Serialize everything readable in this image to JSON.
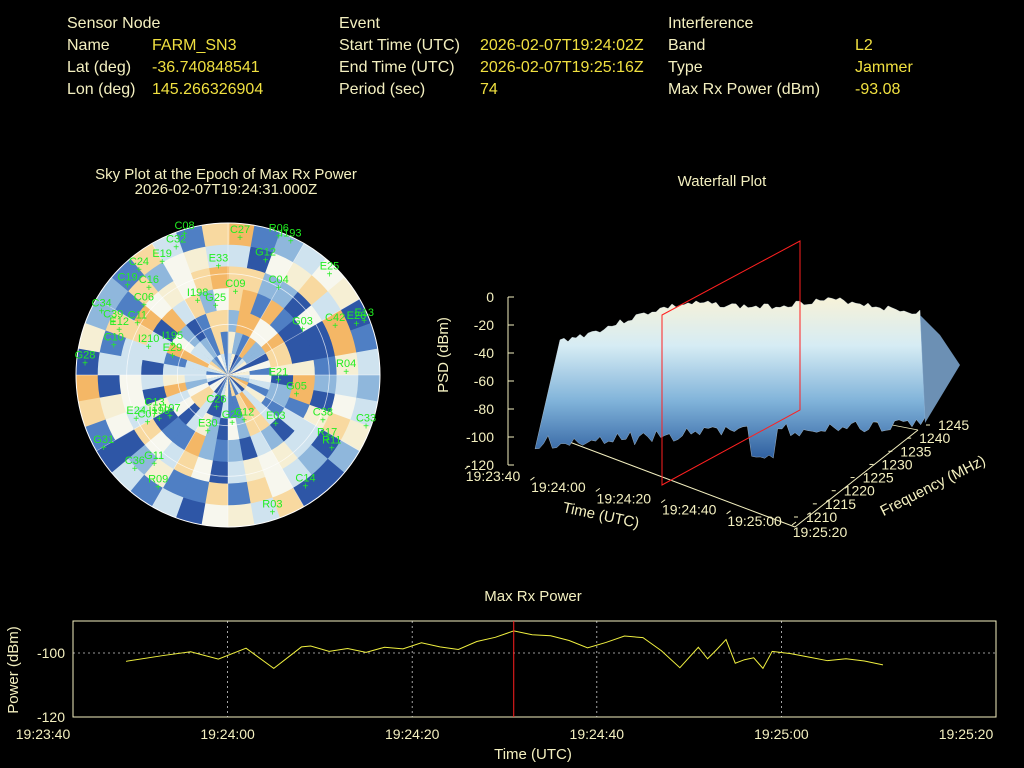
{
  "header": {
    "sensor": {
      "heading": "Sensor Node",
      "rows": [
        {
          "label": "Name",
          "value": "FARM_SN3"
        },
        {
          "label": "Lat (deg)",
          "value": "-36.740848541"
        },
        {
          "label": "Lon (deg)",
          "value": "145.266326904"
        }
      ]
    },
    "event": {
      "heading": "Event",
      "rows": [
        {
          "label": "Start Time (UTC)",
          "value": "2026-02-07T19:24:02Z"
        },
        {
          "label": "End Time (UTC)",
          "value": "2026-02-07T19:25:16Z"
        },
        {
          "label": "Period (sec)",
          "value": "74"
        }
      ]
    },
    "interference": {
      "heading": "Interference",
      "rows": [
        {
          "label": "Band",
          "value": "L2"
        },
        {
          "label": "Type",
          "value": "Jammer"
        },
        {
          "label": "Max Rx Power (dBm)",
          "value": "-93.08"
        }
      ]
    }
  },
  "colors": {
    "label": "#f4f0c0",
    "value": "#f0e040",
    "satellite": "#22ee22",
    "marker": "#ff2020",
    "trace": "#f0f040"
  },
  "chart_data": [
    {
      "type": "scatter",
      "chart": "sky-plot",
      "title": "Sky Plot at the Epoch of Max Rx Power",
      "subtitle": "2026-02-07T19:24:31.000Z",
      "satellites": [
        {
          "id": "C08",
          "az": 343,
          "el": 2
        },
        {
          "id": "R06",
          "az": 20,
          "el": 2
        },
        {
          "id": "I193",
          "az": 25,
          "el": 2
        },
        {
          "id": "C27",
          "az": 5,
          "el": 8
        },
        {
          "id": "G12",
          "az": 18,
          "el": 18
        },
        {
          "id": "C32",
          "az": 338,
          "el": 8
        },
        {
          "id": "E19",
          "az": 330,
          "el": 12
        },
        {
          "id": "C24",
          "az": 320,
          "el": 8
        },
        {
          "id": "C19",
          "az": 312,
          "el": 10
        },
        {
          "id": "E33",
          "az": 355,
          "el": 25
        },
        {
          "id": "C16",
          "az": 318,
          "el": 20
        },
        {
          "id": "C06",
          "az": 310,
          "el": 25
        },
        {
          "id": "C09",
          "az": 5,
          "el": 40
        },
        {
          "id": "C04",
          "az": 30,
          "el": 30
        },
        {
          "id": "E25",
          "az": 45,
          "el": 5
        },
        {
          "id": "I198",
          "az": 338,
          "el": 42
        },
        {
          "id": "G25",
          "az": 350,
          "el": 48
        },
        {
          "id": "C42",
          "az": 65,
          "el": 20
        },
        {
          "id": "G03",
          "az": 58,
          "el": 38
        },
        {
          "id": "E13",
          "az": 68,
          "el": 3
        },
        {
          "id": "E26",
          "az": 68,
          "el": 8
        },
        {
          "id": "C34",
          "az": 297,
          "el": 6
        },
        {
          "id": "C39",
          "az": 295,
          "el": 15
        },
        {
          "id": "E12",
          "az": 293,
          "el": 20
        },
        {
          "id": "C11",
          "az": 300,
          "el": 28
        },
        {
          "id": "C10",
          "az": 285,
          "el": 20
        },
        {
          "id": "I210",
          "az": 290,
          "el": 40
        },
        {
          "id": "I195",
          "az": 300,
          "el": 52
        },
        {
          "id": "G28",
          "az": 275,
          "el": 5
        },
        {
          "id": "E29",
          "az": 290,
          "el": 55
        },
        {
          "id": "C26",
          "az": 200,
          "el": 70
        },
        {
          "id": "E21",
          "az": 95,
          "el": 60
        },
        {
          "id": "G05",
          "az": 105,
          "el": 48
        },
        {
          "id": "R04",
          "az": 88,
          "el": 20
        },
        {
          "id": "E24",
          "az": 245,
          "el": 30
        },
        {
          "id": "C07",
          "az": 240,
          "el": 35
        },
        {
          "id": "I199",
          "az": 238,
          "el": 42
        },
        {
          "id": "C13",
          "az": 245,
          "el": 42
        },
        {
          "id": "I197",
          "az": 235,
          "el": 48
        },
        {
          "id": "G29",
          "az": 175,
          "el": 62
        },
        {
          "id": "C12",
          "az": 160,
          "el": 62
        },
        {
          "id": "E30",
          "az": 200,
          "el": 55
        },
        {
          "id": "E03",
          "az": 135,
          "el": 50
        },
        {
          "id": "C38",
          "az": 115,
          "el": 28
        },
        {
          "id": "C33",
          "az": 110,
          "el": 3
        },
        {
          "id": "R17",
          "az": 123,
          "el": 20
        },
        {
          "id": "R11",
          "az": 125,
          "el": 15
        },
        {
          "id": "G31",
          "az": 240,
          "el": 5
        },
        {
          "id": "C36",
          "az": 225,
          "el": 12
        },
        {
          "id": "G11",
          "az": 220,
          "el": 22
        },
        {
          "id": "R09",
          "az": 212,
          "el": 12
        },
        {
          "id": "C14",
          "az": 145,
          "el": 10
        },
        {
          "id": "R03",
          "az": 162,
          "el": 5
        }
      ]
    },
    {
      "type": "area",
      "chart": "waterfall-3d",
      "title": "Waterfall Plot",
      "zlabel": "PSD (dBm)",
      "xlabel": "Time (UTC)",
      "ylabel": "Frequency (MHz)",
      "zticks": [
        "0",
        "-20",
        "-40",
        "-60",
        "-80",
        "-100",
        "-120"
      ],
      "zlim": [
        -120,
        0
      ],
      "xticks": [
        "19:23:40",
        "19:24:00",
        "19:24:20",
        "19:24:40",
        "19:25:00",
        "19:25:20"
      ],
      "yticks": [
        "1210",
        "1215",
        "1220",
        "1225",
        "1230",
        "1235",
        "1240",
        "1245"
      ],
      "ylim": [
        1210,
        1245
      ],
      "marker_time": "19:24:31"
    },
    {
      "type": "line",
      "chart": "max-rx-power",
      "title": "Max Rx Power",
      "xlabel": "Time (UTC)",
      "ylabel": "Power (dBm)",
      "xticks": [
        "19:23:40",
        "19:24:00",
        "19:24:20",
        "19:24:40",
        "19:25:00",
        "19:25:20"
      ],
      "xlim": [
        0,
        100
      ],
      "yticks": [
        "-100",
        "-120"
      ],
      "ylim": [
        -120,
        -90
      ],
      "marker_time_sec": 51,
      "grid": true,
      "series": [
        {
          "x": [
            9,
            13,
            16,
            19,
            22,
            25,
            28,
            29,
            31,
            33,
            35,
            37,
            39,
            41,
            43,
            45,
            47,
            49,
            51,
            53,
            55,
            57,
            59,
            61,
            63,
            65,
            67,
            69,
            71,
            72,
            73,
            74,
            75,
            76,
            77,
            78,
            79,
            81,
            83,
            85,
            87,
            89,
            91
          ],
          "y": [
            -102.6,
            -100.8,
            -99.6,
            -101.9,
            -98.5,
            -104.8,
            -98.1,
            -97.8,
            -99.5,
            -98.6,
            -99.8,
            -98.2,
            -98.7,
            -96.8,
            -98.1,
            -98.9,
            -96.4,
            -95.1,
            -93.1,
            -94.3,
            -94.6,
            -96.1,
            -98.4,
            -96.7,
            -94.7,
            -95.2,
            -99.3,
            -104.6,
            -98.2,
            -101.8,
            -98.9,
            -95.8,
            -103.2,
            -102.1,
            -101.5,
            -104.8,
            -99.5,
            -100.2,
            -101.3,
            -102.4,
            -101.8,
            -102.5,
            -103.7
          ]
        }
      ]
    }
  ]
}
